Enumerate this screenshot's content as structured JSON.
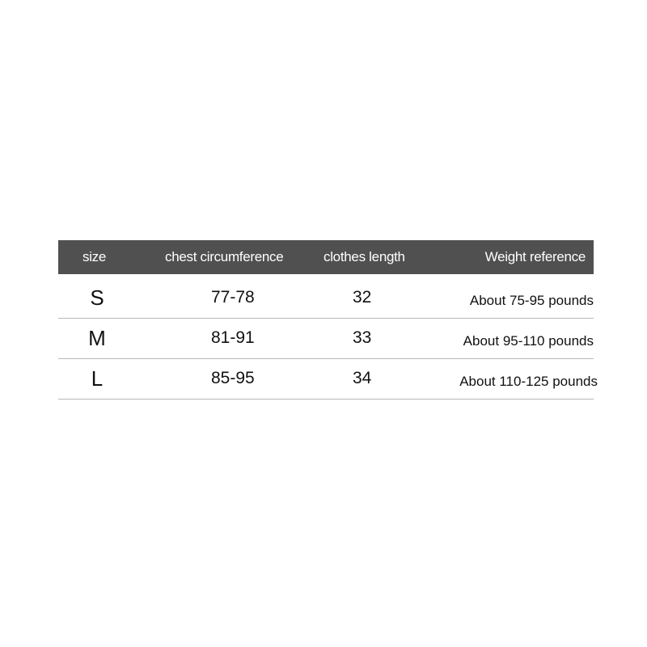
{
  "table": {
    "headers": [
      "size",
      "chest circumference",
      "clothes length",
      "Weight reference"
    ],
    "header_color": "#505050",
    "rows": [
      {
        "size": "S",
        "chest": "77-78",
        "length": "32",
        "weight": "About 75-95 pounds"
      },
      {
        "size": "M",
        "chest": "81-91",
        "length": "33",
        "weight": "About 95-110 pounds"
      },
      {
        "size": "L",
        "chest": "85-95",
        "length": "34",
        "weight": "About 110-125 pounds"
      }
    ]
  }
}
